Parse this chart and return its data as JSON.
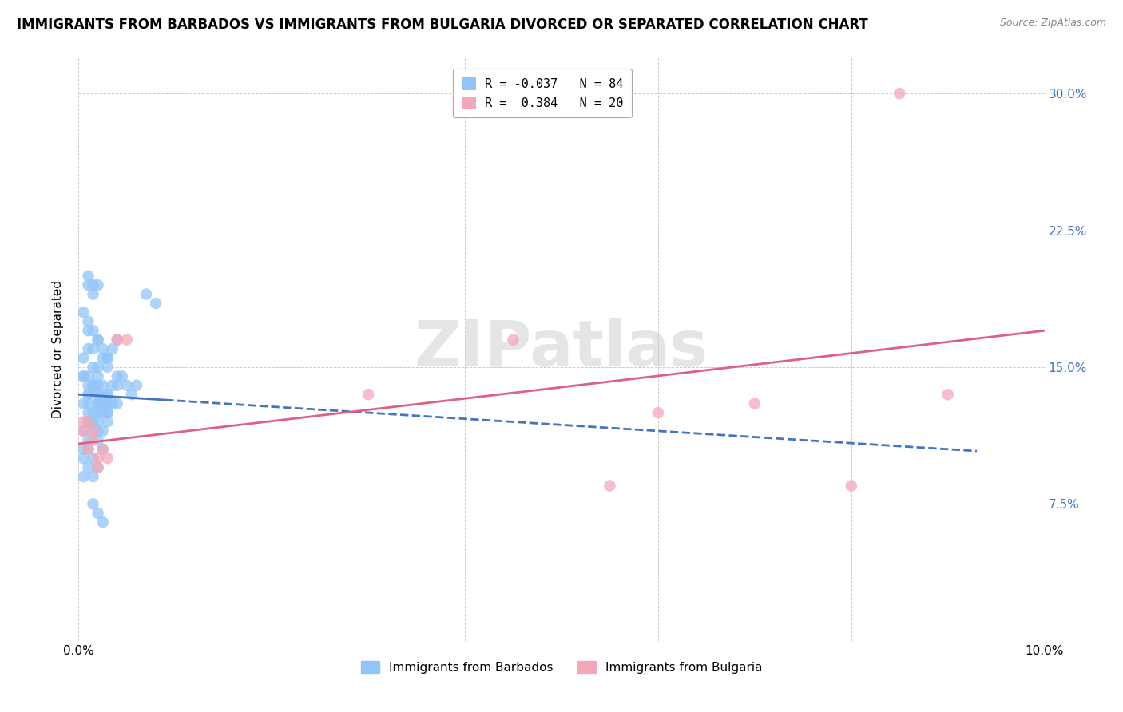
{
  "title": "IMMIGRANTS FROM BARBADOS VS IMMIGRANTS FROM BULGARIA DIVORCED OR SEPARATED CORRELATION CHART",
  "source": "Source: ZipAtlas.com",
  "ylabel": "Divorced or Separated",
  "xlim": [
    0.0,
    0.1
  ],
  "ylim": [
    0.0,
    0.32
  ],
  "ytick_vals": [
    0.0,
    0.075,
    0.15,
    0.225,
    0.3
  ],
  "ytick_labels_right": [
    "",
    "7.5%",
    "15.0%",
    "22.5%",
    "30.0%"
  ],
  "xtick_vals": [
    0.0,
    0.02,
    0.04,
    0.06,
    0.08,
    0.1
  ],
  "xtick_labels": [
    "0.0%",
    "",
    "",
    "",
    "",
    "10.0%"
  ],
  "color_barbados": "#92C5F7",
  "color_bulgaria": "#F4A7B9",
  "color_line_barbados": "#4472C4",
  "color_line_bulgaria": "#E06080",
  "watermark": "ZIPatlas",
  "title_fontsize": 12,
  "axis_label_fontsize": 11,
  "tick_fontsize": 11,
  "barbados_x": [
    0.0005,
    0.001,
    0.0015,
    0.002,
    0.0005,
    0.001,
    0.0015,
    0.002,
    0.0025,
    0.003,
    0.0005,
    0.001,
    0.0015,
    0.002,
    0.0025,
    0.003,
    0.0035,
    0.004,
    0.0005,
    0.001,
    0.0015,
    0.002,
    0.0025,
    0.003,
    0.0035,
    0.0005,
    0.001,
    0.0015,
    0.002,
    0.0025,
    0.003,
    0.0005,
    0.001,
    0.0015,
    0.002,
    0.0025,
    0.0005,
    0.001,
    0.0015,
    0.002,
    0.0005,
    0.001,
    0.0015,
    0.004,
    0.0045,
    0.005,
    0.0055,
    0.006,
    0.003,
    0.0035,
    0.004,
    0.007,
    0.008,
    0.0015,
    0.002,
    0.0025,
    0.001,
    0.0015,
    0.002,
    0.0025,
    0.003,
    0.001,
    0.0015,
    0.002,
    0.001,
    0.0015,
    0.002,
    0.0025,
    0.003,
    0.001,
    0.002,
    0.003,
    0.001,
    0.002,
    0.0005,
    0.001,
    0.0015,
    0.002,
    0.001,
    0.002,
    0.003,
    0.001,
    0.002,
    0.003,
    0.004
  ],
  "barbados_y": [
    0.145,
    0.135,
    0.14,
    0.135,
    0.155,
    0.16,
    0.15,
    0.145,
    0.14,
    0.135,
    0.18,
    0.17,
    0.16,
    0.165,
    0.155,
    0.15,
    0.14,
    0.145,
    0.13,
    0.125,
    0.12,
    0.125,
    0.13,
    0.135,
    0.13,
    0.115,
    0.12,
    0.125,
    0.12,
    0.115,
    0.12,
    0.105,
    0.11,
    0.115,
    0.11,
    0.105,
    0.1,
    0.105,
    0.1,
    0.095,
    0.09,
    0.095,
    0.09,
    0.14,
    0.145,
    0.14,
    0.135,
    0.14,
    0.155,
    0.16,
    0.165,
    0.19,
    0.185,
    0.075,
    0.07,
    0.065,
    0.175,
    0.17,
    0.165,
    0.16,
    0.155,
    0.195,
    0.19,
    0.195,
    0.2,
    0.195,
    0.13,
    0.125,
    0.13,
    0.14,
    0.13,
    0.125,
    0.145,
    0.15,
    0.145,
    0.135,
    0.14,
    0.14,
    0.13,
    0.135,
    0.13,
    0.12,
    0.115,
    0.125,
    0.13
  ],
  "bulgaria_x": [
    0.0005,
    0.001,
    0.0015,
    0.002,
    0.0025,
    0.003,
    0.0005,
    0.001,
    0.0015,
    0.002,
    0.004,
    0.005,
    0.03,
    0.045,
    0.06,
    0.07,
    0.085,
    0.09,
    0.055,
    0.08
  ],
  "bulgaria_y": [
    0.115,
    0.105,
    0.11,
    0.1,
    0.105,
    0.1,
    0.12,
    0.12,
    0.115,
    0.095,
    0.165,
    0.165,
    0.135,
    0.165,
    0.125,
    0.13,
    0.3,
    0.135,
    0.085,
    0.085
  ],
  "barb_line_x0": 0.0,
  "barb_line_x1": 0.009,
  "barb_line_xdash_end": 0.093,
  "barb_line_y0": 0.135,
  "barb_line_y1": 0.132,
  "bulg_line_x0": 0.0,
  "bulg_line_x1": 0.1,
  "bulg_line_y0": 0.108,
  "bulg_line_y1": 0.17
}
